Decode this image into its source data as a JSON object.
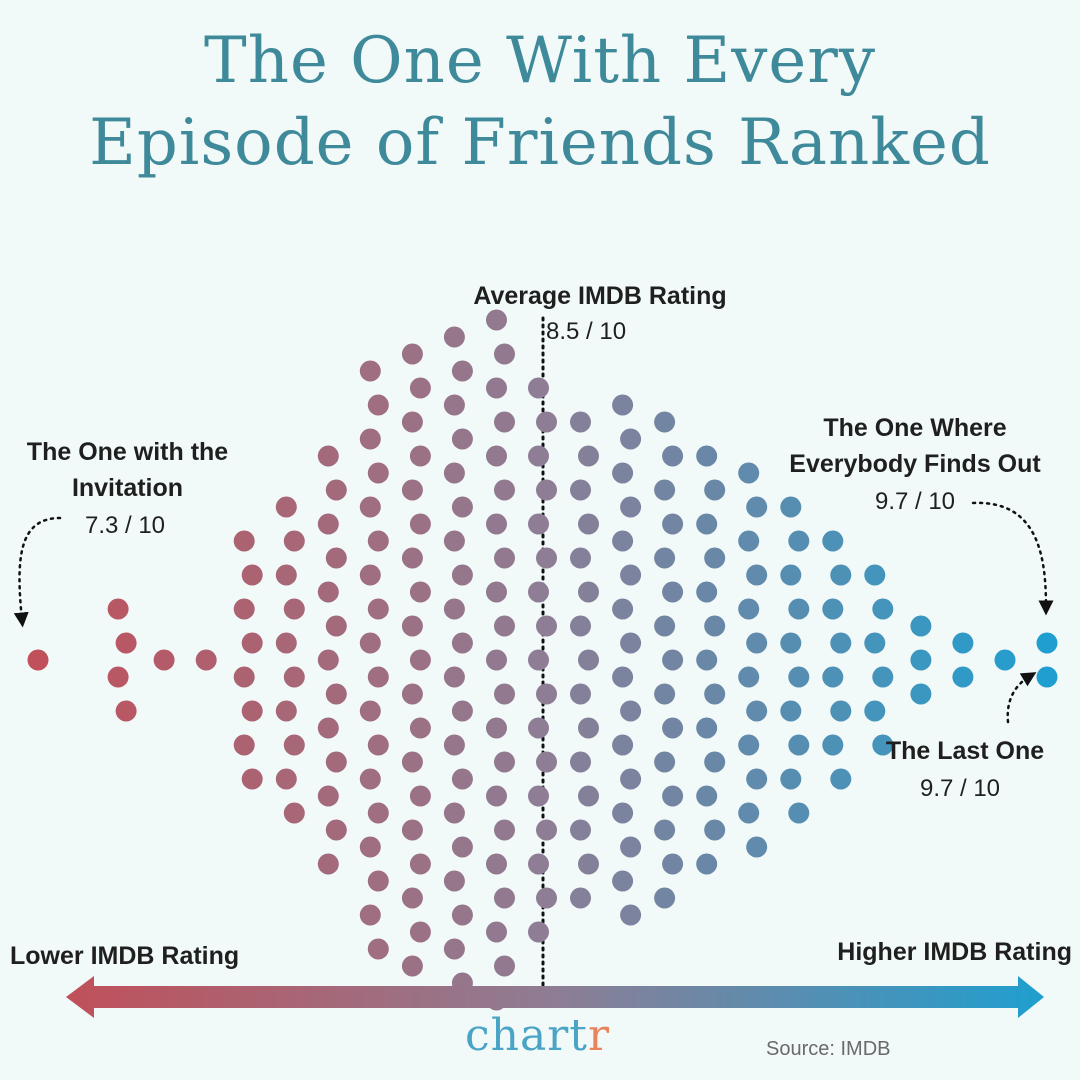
{
  "title": {
    "line1": "The One With Every",
    "line2": "Episode of Friends Ranked"
  },
  "annotations": {
    "average_label": "Average IMDB Rating",
    "average_value": "8.5 / 10",
    "lowest_name": "The One with the Invitation",
    "lowest_value": "7.3 / 10",
    "highest_name": "The One Where Everybody Finds Out",
    "highest_value": "9.7 / 10",
    "last_name": "The Last One",
    "last_value": "9.7 / 10"
  },
  "axis": {
    "low_label": "Lower IMDB Rating",
    "high_label": "Higher IMDB Rating"
  },
  "brand": {
    "logo_main": "chart",
    "logo_accent": "r"
  },
  "source": "Source: IMDB",
  "colors": {
    "title": "#3f8a9a",
    "low": "#c0505a",
    "mid": "#8e7d94",
    "high": "#1f9fcf",
    "logo": "#4aa4c6",
    "logo_accent": "#e8835c"
  },
  "chart_data": {
    "type": "beeswarm",
    "measure": "IMDB rating (out of 10)",
    "x_range": [
      7.3,
      9.7
    ],
    "average": 8.5,
    "episode_count": 236,
    "approx_distribution": [
      {
        "rating": 7.3,
        "episodes": 1
      },
      {
        "rating": 7.5,
        "episodes": 4
      },
      {
        "rating": 7.6,
        "episodes": 1
      },
      {
        "rating": 7.7,
        "episodes": 1
      },
      {
        "rating": 7.8,
        "episodes": 8
      },
      {
        "rating": 7.9,
        "episodes": 10
      },
      {
        "rating": 8.0,
        "episodes": 13
      },
      {
        "rating": 8.1,
        "episodes": 18
      },
      {
        "rating": 8.2,
        "episodes": 19
      },
      {
        "rating": 8.3,
        "episodes": 20
      },
      {
        "rating": 8.4,
        "episodes": 21
      },
      {
        "rating": 8.5,
        "episodes": 17
      },
      {
        "rating": 8.6,
        "episodes": 15
      },
      {
        "rating": 8.7,
        "episodes": 16
      },
      {
        "rating": 8.8,
        "episodes": 15
      },
      {
        "rating": 8.9,
        "episodes": 13
      },
      {
        "rating": 9.0,
        "episodes": 12
      },
      {
        "rating": 9.1,
        "episodes": 10
      },
      {
        "rating": 9.2,
        "episodes": 8
      },
      {
        "rating": 9.3,
        "episodes": 6
      },
      {
        "rating": 9.4,
        "episodes": 3
      },
      {
        "rating": 9.5,
        "episodes": 2
      },
      {
        "rating": 9.6,
        "episodes": 1
      },
      {
        "rating": 9.7,
        "episodes": 2
      }
    ]
  }
}
